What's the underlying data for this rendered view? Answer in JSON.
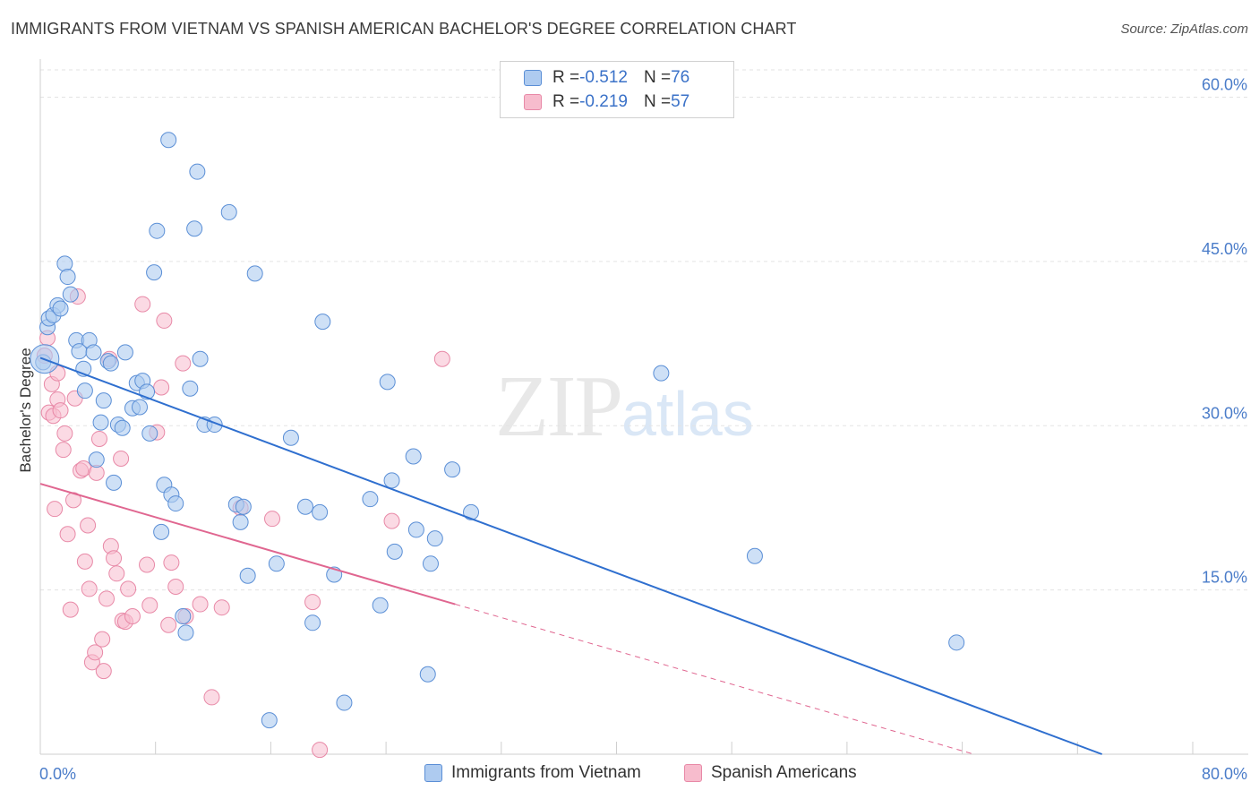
{
  "header": {
    "title": "IMMIGRANTS FROM VIETNAM VS SPANISH AMERICAN BACHELOR'S DEGREE CORRELATION CHART",
    "source": "Source: ZipAtlas.com"
  },
  "watermark": {
    "zip": "ZIP",
    "atlas": "atlas"
  },
  "legend": {
    "rows": [
      {
        "r_label": "R = ",
        "r_value": "-0.512",
        "n_label": "N = ",
        "n_value": "76"
      },
      {
        "r_label": "R = ",
        "r_value": "-0.219",
        "n_label": "N = ",
        "n_value": "57"
      }
    ]
  },
  "bottom_legend": {
    "series1": "Immigrants from Vietnam",
    "series2": "Spanish Americans"
  },
  "colors": {
    "blue_fill": "#aecbf0",
    "blue_stroke": "#5b8fd6",
    "blue_line": "#2f6fcf",
    "pink_fill": "#f7bccd",
    "pink_stroke": "#e889a7",
    "pink_line": "#e06690",
    "grid": "#e3e3e3",
    "tick_label": "#4a7cc9"
  },
  "chart_data": {
    "type": "scatter",
    "title": "IMMIGRANTS FROM VIETNAM VS SPANISH AMERICAN BACHELOR'S DEGREE CORRELATION CHART",
    "xlabel": "",
    "ylabel": "Bachelor's Degree",
    "xlim": [
      0,
      80
    ],
    "ylim": [
      0,
      62.5
    ],
    "x_tick_labels": [
      "0.0%",
      "80.0%"
    ],
    "y_ticks": [
      15,
      30,
      45,
      60
    ],
    "y_tick_labels": [
      "15.0%",
      "30.0%",
      "45.0%",
      "60.0%"
    ],
    "grid": true,
    "legend_position": "top-center",
    "series": [
      {
        "name": "Immigrants from Vietnam",
        "r": -0.512,
        "n": 76,
        "points": [
          [
            0.2,
            35.8
          ],
          [
            0.5,
            39.0
          ],
          [
            0.6,
            39.8
          ],
          [
            0.9,
            40.1
          ],
          [
            1.2,
            41.0
          ],
          [
            1.4,
            40.7
          ],
          [
            1.7,
            44.8
          ],
          [
            1.9,
            43.6
          ],
          [
            2.1,
            42.0
          ],
          [
            2.5,
            37.8
          ],
          [
            2.7,
            36.8
          ],
          [
            3.0,
            35.2
          ],
          [
            3.1,
            33.2
          ],
          [
            3.4,
            37.8
          ],
          [
            3.7,
            36.7
          ],
          [
            3.9,
            26.9
          ],
          [
            4.2,
            30.3
          ],
          [
            4.4,
            32.3
          ],
          [
            4.7,
            35.9
          ],
          [
            4.9,
            35.7
          ],
          [
            5.1,
            24.8
          ],
          [
            5.4,
            30.1
          ],
          [
            5.7,
            29.8
          ],
          [
            5.9,
            36.7
          ],
          [
            6.4,
            31.6
          ],
          [
            6.7,
            33.9
          ],
          [
            6.9,
            31.7
          ],
          [
            7.1,
            34.1
          ],
          [
            7.4,
            33.1
          ],
          [
            7.6,
            29.3
          ],
          [
            7.9,
            44.0
          ],
          [
            8.1,
            47.8
          ],
          [
            8.4,
            20.3
          ],
          [
            8.6,
            24.6
          ],
          [
            8.9,
            56.1
          ],
          [
            9.1,
            23.7
          ],
          [
            9.4,
            22.9
          ],
          [
            9.9,
            12.6
          ],
          [
            10.1,
            11.1
          ],
          [
            10.4,
            33.4
          ],
          [
            10.7,
            48.0
          ],
          [
            10.9,
            53.2
          ],
          [
            11.1,
            36.1
          ],
          [
            11.4,
            30.1
          ],
          [
            12.1,
            30.1
          ],
          [
            13.1,
            49.5
          ],
          [
            13.6,
            22.8
          ],
          [
            13.9,
            21.2
          ],
          [
            14.1,
            22.6
          ],
          [
            14.4,
            16.3
          ],
          [
            14.9,
            43.9
          ],
          [
            15.9,
            3.1
          ],
          [
            16.4,
            17.4
          ],
          [
            17.4,
            28.9
          ],
          [
            18.4,
            22.6
          ],
          [
            18.9,
            12.0
          ],
          [
            19.4,
            22.1
          ],
          [
            19.6,
            39.5
          ],
          [
            20.4,
            16.4
          ],
          [
            21.1,
            4.7
          ],
          [
            22.9,
            23.3
          ],
          [
            23.6,
            13.6
          ],
          [
            24.1,
            34.0
          ],
          [
            24.4,
            25.0
          ],
          [
            24.6,
            18.5
          ],
          [
            25.9,
            27.2
          ],
          [
            26.1,
            20.5
          ],
          [
            26.9,
            7.3
          ],
          [
            27.1,
            17.4
          ],
          [
            27.4,
            19.7
          ],
          [
            28.6,
            26.0
          ],
          [
            29.9,
            22.1
          ],
          [
            43.1,
            34.8
          ],
          [
            49.6,
            18.1
          ],
          [
            63.6,
            10.2
          ],
          [
            0.3,
            36.1
          ]
        ],
        "trend": {
          "x": [
            0,
            73.7
          ],
          "y": [
            36.2,
            0
          ]
        }
      },
      {
        "name": "Spanish Americans",
        "r": -0.219,
        "n": 57,
        "points": [
          [
            0.3,
            36.4
          ],
          [
            0.5,
            38.0
          ],
          [
            0.6,
            31.2
          ],
          [
            0.8,
            33.8
          ],
          [
            0.9,
            30.9
          ],
          [
            1.0,
            22.4
          ],
          [
            1.2,
            32.4
          ],
          [
            1.4,
            31.4
          ],
          [
            1.6,
            27.8
          ],
          [
            1.7,
            29.3
          ],
          [
            1.9,
            20.1
          ],
          [
            2.1,
            13.2
          ],
          [
            2.3,
            23.2
          ],
          [
            2.4,
            32.5
          ],
          [
            2.6,
            41.8
          ],
          [
            2.8,
            25.9
          ],
          [
            3.0,
            26.1
          ],
          [
            3.1,
            17.6
          ],
          [
            3.3,
            20.9
          ],
          [
            3.4,
            15.1
          ],
          [
            3.6,
            8.4
          ],
          [
            3.8,
            9.3
          ],
          [
            3.9,
            25.7
          ],
          [
            4.1,
            28.8
          ],
          [
            4.3,
            10.5
          ],
          [
            4.4,
            7.6
          ],
          [
            4.6,
            14.2
          ],
          [
            4.8,
            36.1
          ],
          [
            4.9,
            19.0
          ],
          [
            5.1,
            17.9
          ],
          [
            5.3,
            16.5
          ],
          [
            5.6,
            27.0
          ],
          [
            5.7,
            12.2
          ],
          [
            5.9,
            12.1
          ],
          [
            6.1,
            15.1
          ],
          [
            6.4,
            12.6
          ],
          [
            7.1,
            41.1
          ],
          [
            7.4,
            17.3
          ],
          [
            7.6,
            13.6
          ],
          [
            8.1,
            29.4
          ],
          [
            8.4,
            33.5
          ],
          [
            8.6,
            39.6
          ],
          [
            8.9,
            11.8
          ],
          [
            9.1,
            17.5
          ],
          [
            9.4,
            15.3
          ],
          [
            9.9,
            35.7
          ],
          [
            10.1,
            12.6
          ],
          [
            11.1,
            13.7
          ],
          [
            11.9,
            5.2
          ],
          [
            12.6,
            13.4
          ],
          [
            13.9,
            22.5
          ],
          [
            16.1,
            21.5
          ],
          [
            18.9,
            13.9
          ],
          [
            19.4,
            0.4
          ],
          [
            24.4,
            21.3
          ],
          [
            27.9,
            36.1
          ],
          [
            1.2,
            34.8
          ]
        ],
        "trend_solid": {
          "x": [
            0,
            28.8
          ],
          "y": [
            24.7,
            13.7
          ]
        },
        "trend_dashed": {
          "x": [
            28.8,
            64.8
          ],
          "y": [
            13.7,
            0
          ]
        }
      }
    ]
  }
}
